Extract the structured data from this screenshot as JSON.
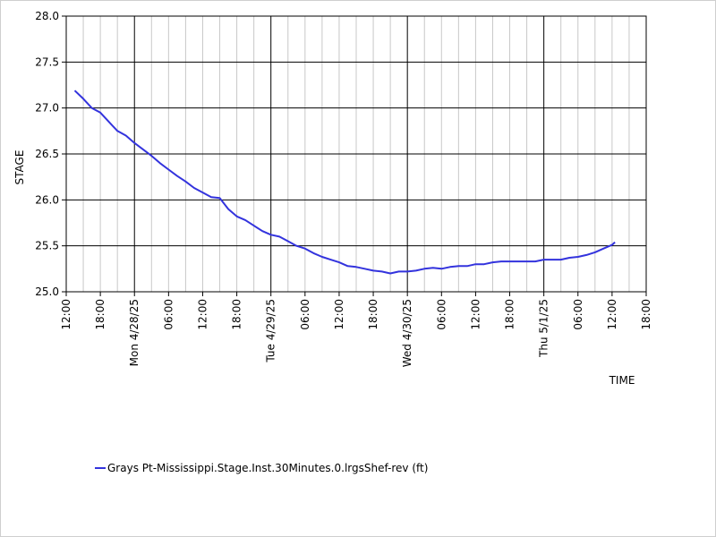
{
  "chart_data": {
    "type": "line",
    "title": "",
    "xlabel": "TIME",
    "ylabel": "STAGE",
    "ylim": [
      25.0,
      28.0
    ],
    "y_ticks": [
      "25.0",
      "25.5",
      "26.0",
      "26.5",
      "27.0",
      "27.5",
      "28.0"
    ],
    "x_ticks": [
      "12:00",
      "18:00",
      "Mon 4/28/25",
      "06:00",
      "12:00",
      "18:00",
      "Tue 4/29/25",
      "06:00",
      "12:00",
      "18:00",
      "Wed 4/30/25",
      "06:00",
      "12:00",
      "18:00",
      "Thu 5/1/25",
      "06:00",
      "12:00",
      "18:00"
    ],
    "x_tick_hours": [
      0,
      6,
      12,
      18,
      24,
      30,
      36,
      42,
      48,
      54,
      60,
      66,
      72,
      78,
      84,
      90,
      96,
      102
    ],
    "xlim_hours": [
      0,
      102
    ],
    "x_note": "x values are hours since 4/27/25 12:00",
    "grid": true,
    "legend_position": "bottom-left",
    "series": [
      {
        "name": "Grays Pt-Mississippi.Stage.Inst.30Minutes.0.lrgsShef-rev (ft)",
        "color": "#3333dd",
        "x": [
          1.5,
          3,
          4.5,
          6,
          7.5,
          9,
          10.5,
          12,
          13.5,
          15,
          16.5,
          18,
          19.5,
          21,
          22.5,
          24,
          25.5,
          27,
          28.5,
          30,
          31.5,
          33,
          34.5,
          36,
          37.5,
          39,
          40.5,
          42,
          43.5,
          45,
          46.5,
          48,
          49.5,
          51,
          52.5,
          54,
          55.5,
          57,
          58.5,
          60,
          61.5,
          63,
          64.5,
          66,
          67.5,
          69,
          70.5,
          72,
          73.5,
          75,
          76.5,
          78,
          79.5,
          81,
          82.5,
          84,
          85.5,
          87,
          88.5,
          90,
          91.5,
          93,
          94.5,
          96,
          96.5
        ],
        "y": [
          27.19,
          27.1,
          27.0,
          26.95,
          26.85,
          26.75,
          26.7,
          26.62,
          26.55,
          26.48,
          26.4,
          26.33,
          26.26,
          26.2,
          26.13,
          26.08,
          26.03,
          26.02,
          25.9,
          25.82,
          25.78,
          25.72,
          25.66,
          25.62,
          25.6,
          25.55,
          25.5,
          25.47,
          25.42,
          25.38,
          25.35,
          25.32,
          25.28,
          25.27,
          25.25,
          25.23,
          25.22,
          25.2,
          25.22,
          25.22,
          25.23,
          25.25,
          25.26,
          25.25,
          25.27,
          25.28,
          25.28,
          25.3,
          25.3,
          25.32,
          25.33,
          25.33,
          25.33,
          25.33,
          25.33,
          25.35,
          25.35,
          25.35,
          25.37,
          25.38,
          25.4,
          25.43,
          25.47,
          25.51,
          25.54
        ]
      }
    ]
  }
}
